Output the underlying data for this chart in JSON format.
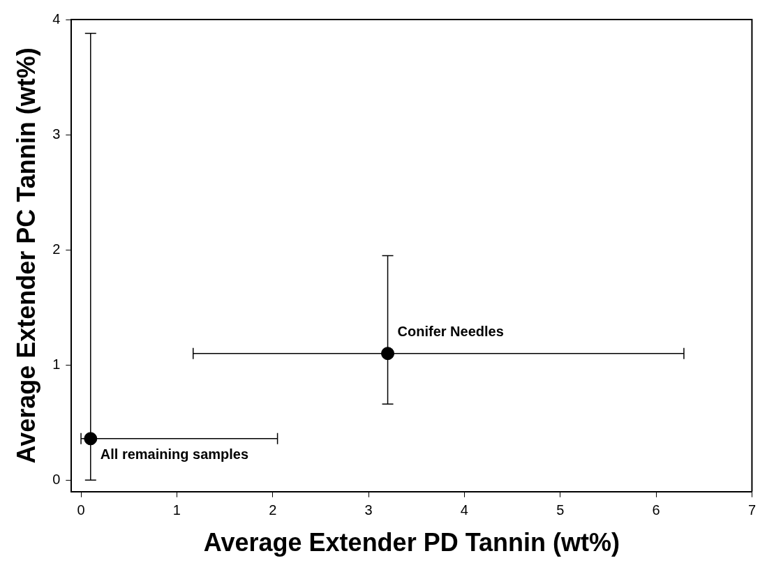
{
  "chart_data": {
    "type": "scatter",
    "xlabel": "Average Extender PD Tannin (wt%)",
    "ylabel": "Average Extender PC Tannin (wt%)",
    "x": [
      0.1,
      3.2
    ],
    "series": [
      {
        "color": "#000000",
        "values": [
          0.36,
          1.1
        ],
        "errors": [
          [
            0,
            3.88
          ],
          [
            0.66,
            1.95
          ]
        ],
        "xerrors": [
          [
            0,
            2.05
          ],
          [
            1.17,
            6.29
          ]
        ]
      }
    ],
    "annotations": [
      {
        "text": "All remaining samples",
        "x": 0.1,
        "y": 0.36
      },
      {
        "text": "Conifer Needles",
        "x": 3.2,
        "y": 1.1
      }
    ],
    "xlim": [
      -0.1,
      7
    ],
    "xticks": [
      0,
      1,
      2,
      3,
      4,
      5,
      6,
      7
    ],
    "ylim": [
      -0.1,
      4
    ],
    "yticks": [
      0,
      1,
      2,
      3,
      4
    ],
    "marker": "circle",
    "legend": false
  }
}
